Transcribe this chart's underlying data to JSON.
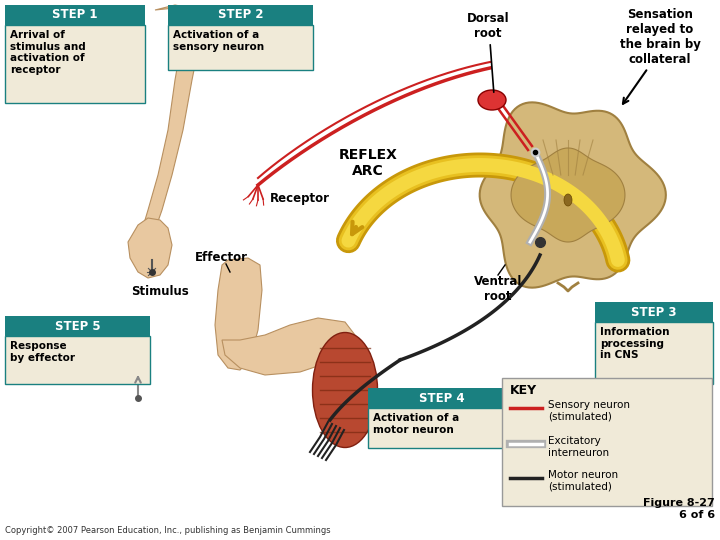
{
  "bg_color": "#ffffff",
  "step_box_color": "#1a8080",
  "step_text_color": "#ffffff",
  "step_label_color": "#000000",
  "key_bg_color": "#f0ead8",
  "key_border_color": "#888888",
  "step1_header": "STEP 1",
  "step1_text": "Arrival of\nstimulus and\nactivation of\nreceptor",
  "step2_header": "STEP 2",
  "step2_text": "Activation of a\nsensory neuron",
  "step3_header": "STEP 3",
  "step3_text": "Information\nprocessing\nin CNS",
  "step4_header": "STEP 4",
  "step4_text": "Activation of a\nmotor neuron",
  "step5_header": "STEP 5",
  "step5_text": "Response\nby effector",
  "label_stimulus": "Stimulus",
  "label_receptor": "Receptor",
  "label_reflex_arc": "REFLEX\nARC",
  "label_dorsal_root": "Dorsal\nroot",
  "label_ventral_root": "Ventral\nroot",
  "label_effector": "Effector",
  "label_sensation": "Sensation\nrelayed to\nthe brain by\ncollateral",
  "key_title": "KEY",
  "key_sensory": "Sensory neuron\n(stimulated)",
  "key_excitatory": "Excitatory\ninterneuron",
  "key_motor": "Motor neuron\n(stimulated)",
  "copyright": "Copyright© 2007 Pearson Education, Inc., publishing as Benjamin Cummings",
  "figure_label": "Figure 8-27\n6 of 6",
  "sensory_color": "#cc2020",
  "excitatory_color": "#b0b0b0",
  "motor_color": "#222222",
  "arm_skin": "#e8c8a0",
  "arm_edge": "#b89060",
  "spinal_outer": "#d4b87a",
  "spinal_inner": "#c8a85a",
  "spinal_deep": "#b89040",
  "yellow_arc": "#e8b800",
  "yellow_arc_light": "#f5d040",
  "muscle_color": "#a04828",
  "muscle_fiber": "#7a3010"
}
